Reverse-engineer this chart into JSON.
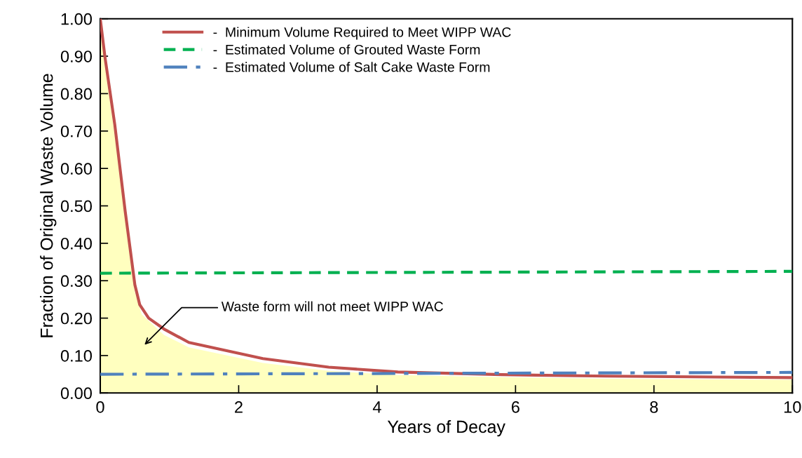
{
  "chart_data": {
    "type": "line",
    "xlabel": "Years of Decay",
    "ylabel": "Fraction of Original Waste Volume",
    "xlim": [
      0,
      10
    ],
    "ylim": [
      0,
      1
    ],
    "xticks": [
      0,
      2,
      4,
      6,
      8,
      10
    ],
    "yticks": [
      {
        "value": 0,
        "label": "0.00"
      },
      {
        "value": 0.1,
        "label": "0.10"
      },
      {
        "value": 0.2,
        "label": "0.20"
      },
      {
        "value": 0.3,
        "label": "0.30"
      },
      {
        "value": 0.4,
        "label": "0.40"
      },
      {
        "value": 0.5,
        "label": "0.50"
      },
      {
        "value": 0.6,
        "label": "0.60"
      },
      {
        "value": 0.7,
        "label": "0.70"
      },
      {
        "value": 0.8,
        "label": "0.80"
      },
      {
        "value": 0.9,
        "label": "0.90"
      },
      {
        "value": 1,
        "label": "1.00"
      }
    ],
    "grid": false,
    "legend": "top left",
    "series": [
      {
        "type": "area",
        "color": "#ffffbf",
        "x": [
          0,
          0.07,
          0.21,
          0.36,
          0.43,
          0.5,
          0.6,
          0.92,
          1.28,
          2.35,
          3.3,
          4.3,
          5.8,
          7.3,
          10
        ],
        "values": [
          0.98,
          0.87,
          0.69,
          0.47,
          0.37,
          0.27,
          0.21,
          0.155,
          0.122,
          0.08,
          0.059,
          0.048,
          0.042,
          0.038,
          0.035
        ]
      },
      {
        "name": "-  Minimum Volume Required to Meet WIPP WAC",
        "color": "#c0504d",
        "line_style": "solid",
        "x": [
          0,
          0.07,
          0.21,
          0.36,
          0.43,
          0.5,
          0.57,
          0.7,
          0.92,
          1.28,
          2.35,
          3.3,
          4.3,
          5.8,
          7.3,
          10
        ],
        "values": [
          1.0,
          0.895,
          0.717,
          0.486,
          0.388,
          0.289,
          0.236,
          0.2,
          0.171,
          0.135,
          0.092,
          0.069,
          0.056,
          0.049,
          0.045,
          0.041
        ]
      },
      {
        "name": "-  Estimated Volume of Grouted Waste Form",
        "color": "#00b050",
        "line_style": "dashed",
        "x": [
          0,
          10
        ],
        "values": [
          0.32,
          0.325
        ]
      },
      {
        "name": "-  Estimated Volume of Salt Cake Waste Form",
        "color": "#4f81bd",
        "line_style": "dashdot",
        "x": [
          0,
          10
        ],
        "values": [
          0.05,
          0.055
        ]
      }
    ],
    "annotations": [
      "Waste form will not meet WIPP WAC"
    ]
  }
}
